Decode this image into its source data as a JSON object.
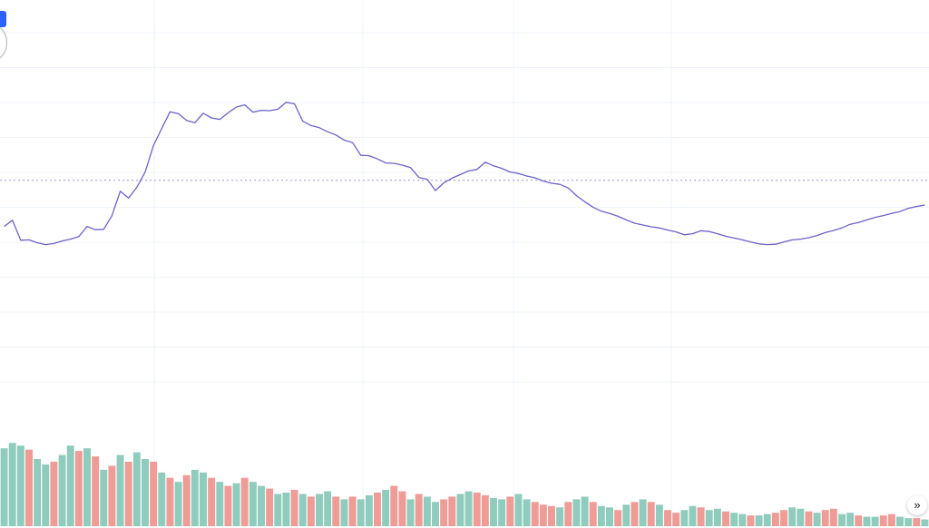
{
  "app": {
    "corner_badge_icon": "blue-marker-icon",
    "corner_ring_icon": "circle-handle-icon",
    "scroll_button_glyph": "»",
    "scroll_button_icon": "double-chevron-right-icon"
  },
  "chart_data": {
    "type": "line",
    "title": "",
    "xlabel": "",
    "ylabel": "",
    "grid": true,
    "legend": "none",
    "price_range": [
      0,
      100
    ],
    "volume_range": [
      0,
      100
    ],
    "reference_line": 55.3,
    "colors": {
      "line": "#6c61c9",
      "line_highlight": "#a05cc0",
      "volume_up": "#8fccbd",
      "volume_down": "#ef9b96",
      "grid": "#f0f3fa",
      "reference": "#9e95d8"
    },
    "series": [
      {
        "values": [
          42.6,
          44.3,
          38.8,
          38.9,
          38.1,
          37.6,
          37.9,
          38.6,
          39.1,
          39.8,
          42.6,
          41.7,
          41.8,
          45.6,
          52.3,
          50.4,
          53.4,
          57.6,
          64.9,
          69.6,
          74.2,
          73.7,
          71.8,
          71.2,
          73.8,
          72.5,
          72.1,
          73.9,
          75.5,
          76.1,
          74.1,
          74.6,
          74.5,
          74.9,
          76.8,
          76.4,
          71.6,
          70.4,
          69.8,
          68.7,
          67.8,
          66.4,
          65.7,
          62.2,
          62.1,
          61.2,
          60.1,
          60.0,
          59.5,
          58.8,
          56.1,
          55.6,
          52.5,
          54.6,
          55.9,
          56.9,
          57.9,
          58.3,
          60.3,
          59.3,
          58.6,
          57.6,
          57.2,
          56.5,
          56.0,
          55.1,
          54.5,
          54.2,
          53.2,
          51.1,
          49.4,
          47.9,
          46.8,
          46.2,
          45.4,
          44.4,
          43.5,
          43.0,
          42.5,
          42.2,
          41.6,
          41.1,
          40.3,
          40.6,
          41.4,
          41.2,
          40.6,
          39.9,
          39.4,
          38.9,
          38.3,
          37.8,
          37.6,
          37.7,
          38.3,
          38.9,
          39.1,
          39.5,
          40.1,
          40.9,
          41.5,
          42.2,
          43.2,
          43.7,
          44.4,
          45.1,
          45.6,
          46.2,
          46.7,
          47.6,
          48.1,
          48.5
        ],
        "volumes": [
          58,
          62,
          60,
          57,
          50,
          46,
          48,
          53,
          60,
          56,
          58,
          52,
          42,
          45,
          53,
          48,
          55,
          50,
          48,
          40,
          36,
          33,
          38,
          42,
          40,
          36,
          33,
          30,
          32,
          36,
          33,
          30,
          28,
          24,
          25,
          27,
          24,
          22,
          24,
          26,
          22,
          20,
          22,
          20,
          23,
          25,
          27,
          30,
          26,
          20,
          24,
          22,
          18,
          20,
          22,
          24,
          26,
          25,
          23,
          21,
          20,
          22,
          24,
          20,
          18,
          16,
          15,
          14,
          18,
          20,
          22,
          18,
          15,
          14,
          12,
          16,
          18,
          20,
          18,
          16,
          12,
          10,
          12,
          15,
          14,
          12,
          13,
          11,
          10,
          9,
          8,
          8,
          9,
          10,
          12,
          14,
          13,
          11,
          10,
          12,
          13,
          9,
          10,
          8,
          7,
          7,
          8,
          9,
          7,
          6,
          6,
          5
        ],
        "directions": [
          "u",
          "u",
          "u",
          "d",
          "u",
          "u",
          "d",
          "u",
          "u",
          "d",
          "u",
          "d",
          "u",
          "d",
          "u",
          "d",
          "u",
          "u",
          "d",
          "u",
          "d",
          "u",
          "d",
          "u",
          "u",
          "d",
          "u",
          "d",
          "u",
          "d",
          "u",
          "u",
          "d",
          "u",
          "u",
          "d",
          "u",
          "d",
          "u",
          "u",
          "d",
          "u",
          "d",
          "u",
          "u",
          "d",
          "u",
          "d",
          "d",
          "u",
          "d",
          "u",
          "u",
          "d",
          "d",
          "u",
          "u",
          "d",
          "d",
          "u",
          "u",
          "d",
          "u",
          "u",
          "d",
          "d",
          "d",
          "u",
          "d",
          "u",
          "u",
          "d",
          "u",
          "u",
          "d",
          "u",
          "d",
          "u",
          "d",
          "u",
          "d",
          "d",
          "u",
          "u",
          "d",
          "u",
          "u",
          "d",
          "u",
          "u",
          "d",
          "u",
          "u",
          "d",
          "d",
          "u",
          "u",
          "d",
          "u",
          "d",
          "d",
          "u",
          "u",
          "d",
          "u",
          "u",
          "d",
          "d",
          "u",
          "u",
          "d",
          "u"
        ]
      }
    ]
  }
}
